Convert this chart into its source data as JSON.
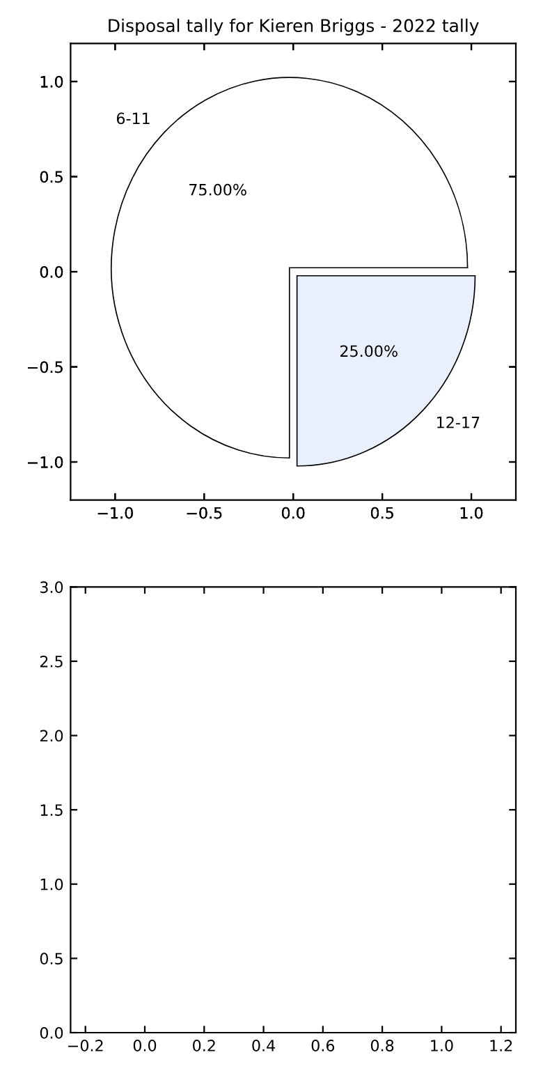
{
  "chart_data": [
    {
      "type": "pie",
      "title": "Disposal tally for Kieren Briggs - 2022 tally",
      "categories": [
        "6-11",
        "12-17"
      ],
      "values": [
        75,
        25
      ],
      "colors": [
        "#ffffff",
        "#eaf0fb"
      ],
      "value_labels": [
        "75.00%",
        "25.00%"
      ]
    },
    {
      "type": "scatter",
      "xlim": [
        -1.25,
        1.25
      ],
      "ylim": [
        -1.2,
        1.2
      ],
      "xticks": [
        {
          "value": -1.0,
          "label": "−1.0"
        },
        {
          "value": -0.5,
          "label": "−0.5"
        },
        {
          "value": 0,
          "label": "0.0"
        },
        {
          "value": 0.5,
          "label": "0.5"
        },
        {
          "value": 1,
          "label": "1.0"
        }
      ],
      "yticks": [
        {
          "value": -1.0,
          "label": "−1.0"
        },
        {
          "value": -0.5,
          "label": "−0.5"
        },
        {
          "value": 0,
          "label": "0.0"
        },
        {
          "value": 0.5,
          "label": "0.5"
        },
        {
          "value": 1,
          "label": "1.0"
        }
      ]
    },
    {
      "type": "scatter",
      "xlim": [
        -0.25,
        1.25
      ],
      "ylim": [
        0,
        3
      ],
      "xticks": [
        {
          "value": -0.2,
          "label": "−0.2"
        },
        {
          "value": 0,
          "label": "0.0"
        },
        {
          "value": 0.2,
          "label": "0.2"
        },
        {
          "value": 0.4,
          "label": "0.4"
        },
        {
          "value": 0.6,
          "label": "0.6"
        },
        {
          "value": 0.8,
          "label": "0.8"
        },
        {
          "value": 1,
          "label": "1.0"
        },
        {
          "value": 1.2,
          "label": "1.2"
        }
      ],
      "yticks": [
        {
          "value": 0,
          "label": "0.0"
        },
        {
          "value": 0.5,
          "label": "0.5"
        },
        {
          "value": 1,
          "label": "1.0"
        },
        {
          "value": 1.5,
          "label": "1.5"
        },
        {
          "value": 2,
          "label": "2.0"
        },
        {
          "value": 2.5,
          "label": "2.5"
        },
        {
          "value": 3,
          "label": "3.0"
        }
      ]
    }
  ]
}
